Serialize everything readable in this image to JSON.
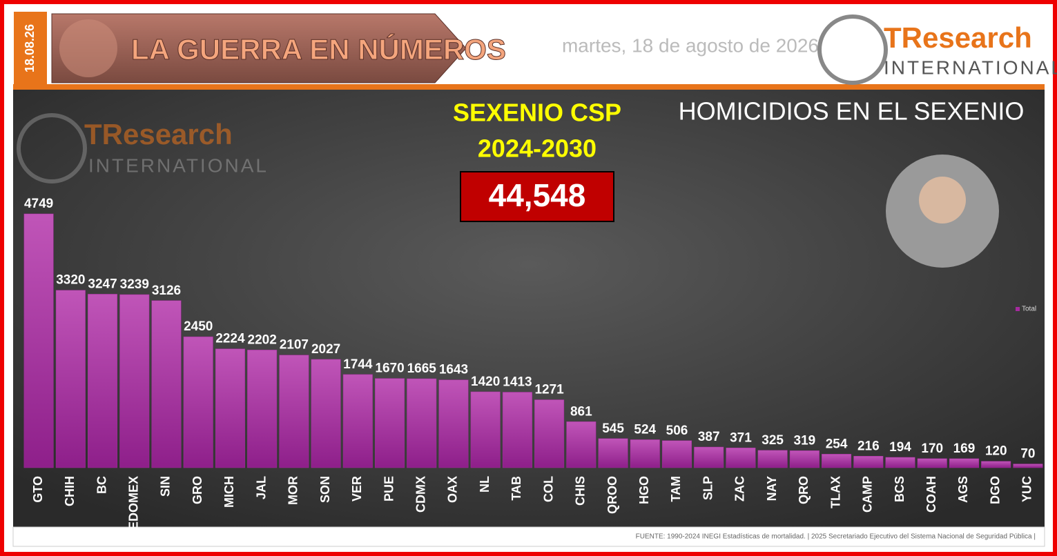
{
  "header": {
    "date_tag": "18.08.26",
    "title": "LA GUERRA EN NÚMEROS",
    "date": "martes, 18 de agosto de 2026",
    "logo": {
      "name": "TResearch",
      "sub": "INTERNATIONAL"
    }
  },
  "annotations": {
    "period_title": "SEXENIO CSP",
    "period": "2024-2030",
    "total": "44,548"
  },
  "footer": {
    "source": "FUENTE: 1990-2024 INEGI Estadísticas de mortalidad. | 2025 Secretariado Ejecutivo del Sistema Nacional de Seguridad Pública |"
  },
  "chart_data": {
    "type": "bar",
    "title": "HOMICIDIOS EN EL SEXENIO",
    "categories": [
      "GTO",
      "CHIH",
      "BC",
      "EDOMEX",
      "SIN",
      "GRO",
      "MICH",
      "JAL",
      "MOR",
      "SON",
      "VER",
      "PUE",
      "CDMX",
      "OAX",
      "NL",
      "TAB",
      "COL",
      "CHIS",
      "QROO",
      "HGO",
      "TAM",
      "SLP",
      "ZAC",
      "NAY",
      "QRO",
      "TLAX",
      "CAMP",
      "BCS",
      "COAH",
      "AGS",
      "DGO",
      "YUC"
    ],
    "series": [
      {
        "name": "Total",
        "color": "#a52a9e",
        "values": [
          4749,
          3320,
          3247,
          3239,
          3126,
          2450,
          2224,
          2202,
          2107,
          2027,
          1744,
          1670,
          1665,
          1643,
          1420,
          1413,
          1271,
          861,
          545,
          524,
          506,
          387,
          371,
          325,
          319,
          254,
          216,
          194,
          170,
          169,
          120,
          70
        ]
      }
    ],
    "legend": "right"
  }
}
